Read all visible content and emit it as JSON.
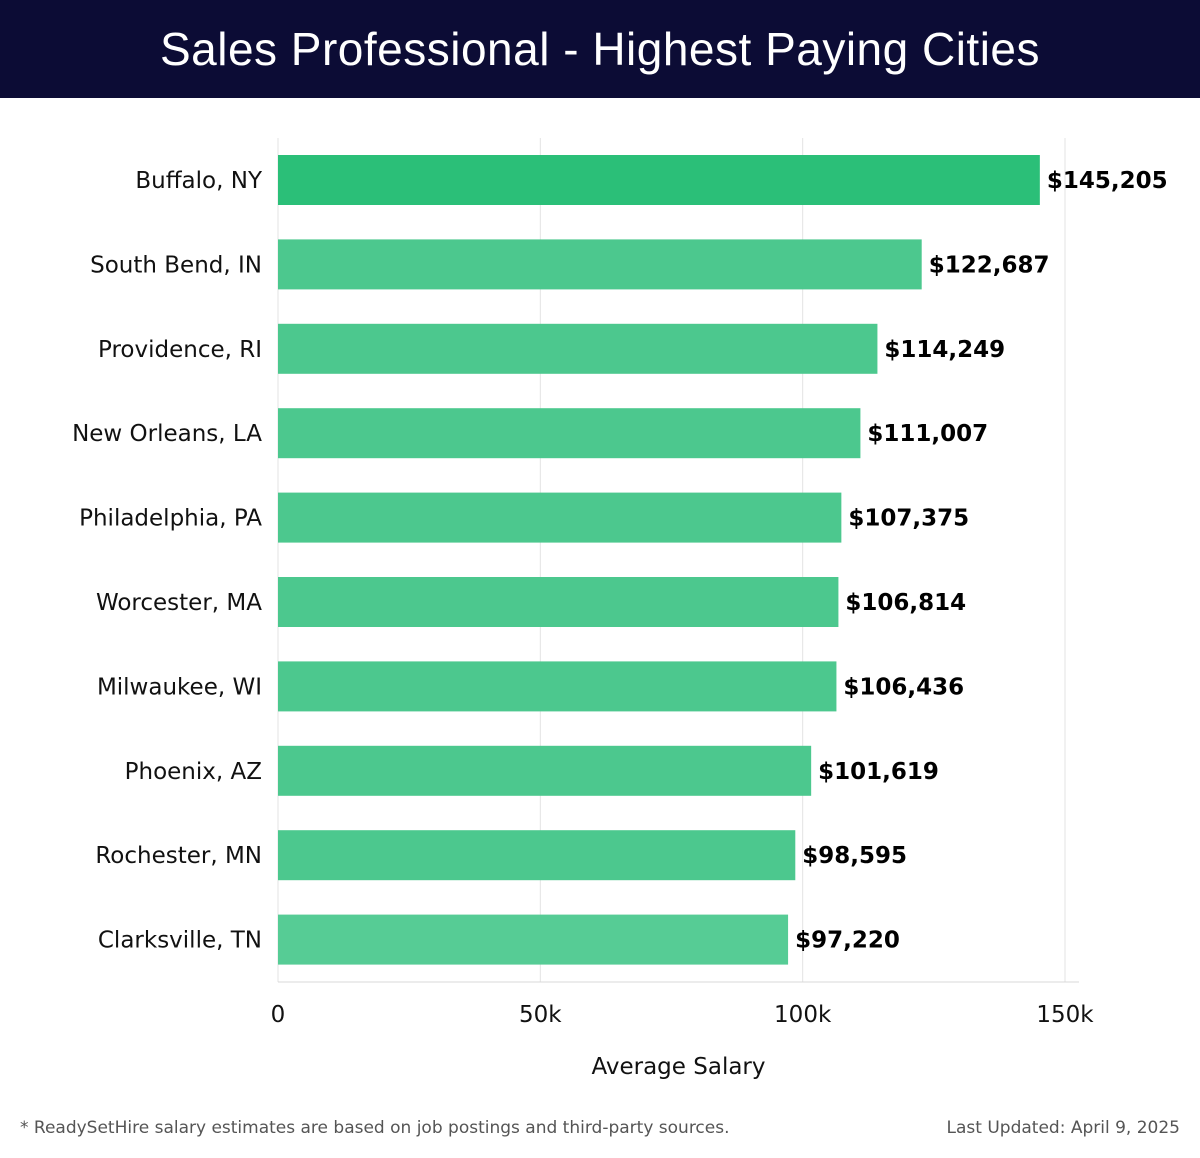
{
  "header": {
    "title": "Sales Professional - Highest Paying Cities"
  },
  "chart_data": {
    "type": "bar",
    "orientation": "horizontal",
    "title": "Sales Professional - Highest Paying Cities",
    "xlabel": "Average Salary",
    "ylabel": "",
    "categories": [
      "Buffalo, NY",
      "South Bend, IN",
      "Providence, RI",
      "New Orleans, LA",
      "Philadelphia, PA",
      "Worcester, MA",
      "Milwaukee, WI",
      "Phoenix, AZ",
      "Rochester, MN",
      "Clarksville, TN"
    ],
    "values": [
      145205,
      122687,
      114249,
      111007,
      107375,
      106814,
      106436,
      101619,
      98595,
      97220
    ],
    "value_labels": [
      "$145,205",
      "$122,687",
      "$114,249",
      "$111,007",
      "$107,375",
      "$106,814",
      "$106,436",
      "$101,619",
      "$98,595",
      "$97,220"
    ],
    "xlim": [
      0,
      150000
    ],
    "xticks": [
      0,
      50000,
      100000,
      150000
    ],
    "xtick_labels": [
      "0",
      "50k",
      "100k",
      "150k"
    ],
    "grid": true,
    "colors": {
      "bar_top": "#2bbf78",
      "bar": "#4cc88e",
      "bar_last": "#56cc95"
    }
  },
  "footer": {
    "note": "* ReadySetHire salary estimates are based on job postings and third-party sources.",
    "updated": "Last Updated: April 9, 2025"
  }
}
